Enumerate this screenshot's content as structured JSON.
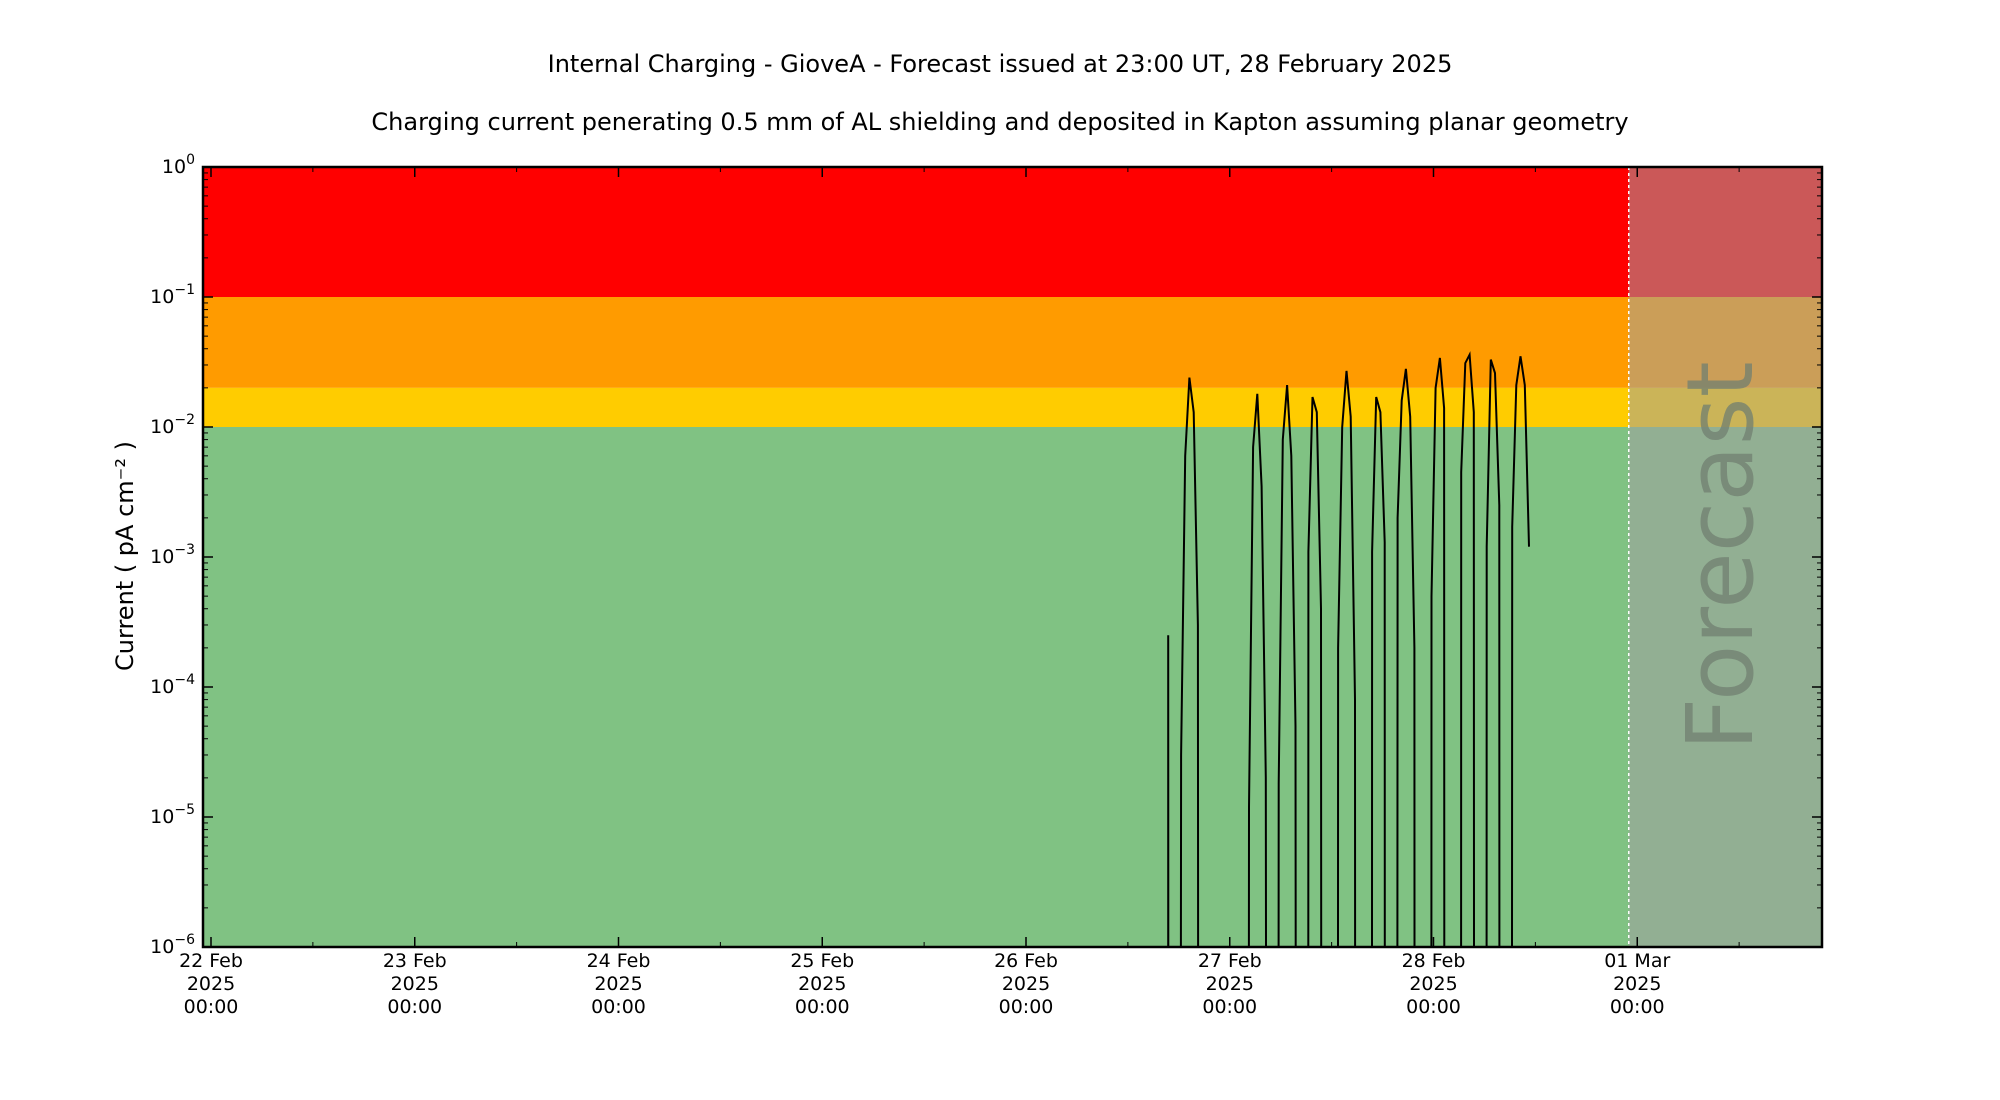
{
  "chart_data": {
    "type": "line",
    "title": "Internal Charging - GioveA - Forecast issued at 23:00 UT, 28 February 2025",
    "subtitle": "Charging current penerating 0.5 mm of AL shielding and deposited in Kapton assuming planar geometry",
    "ylabel": "Current ( pA cm⁻² )",
    "yscale": "log",
    "ylim": [
      1e-06,
      1
    ],
    "xlim": [
      "2025-02-22 00:00",
      "2025-03-01 23:00"
    ],
    "ytick_labels": [
      {
        "base": "10",
        "exp": "−6",
        "value": 1e-06
      },
      {
        "base": "10",
        "exp": "−5",
        "value": 1e-05
      },
      {
        "base": "10",
        "exp": "−4",
        "value": 0.0001
      },
      {
        "base": "10",
        "exp": "−3",
        "value": 0.001
      },
      {
        "base": "10",
        "exp": "−2",
        "value": 0.01
      },
      {
        "base": "10",
        "exp": "−1",
        "value": 0.1
      },
      {
        "base": "10",
        "exp": "0",
        "value": 1
      }
    ],
    "xtick_labels": [
      {
        "date": "2025-02-22 00:00",
        "lines": [
          "22 Feb",
          "2025",
          "00:00"
        ]
      },
      {
        "date": "2025-02-23 00:00",
        "lines": [
          "23 Feb",
          "2025",
          "00:00"
        ]
      },
      {
        "date": "2025-02-24 00:00",
        "lines": [
          "24 Feb",
          "2025",
          "00:00"
        ]
      },
      {
        "date": "2025-02-25 00:00",
        "lines": [
          "25 Feb",
          "2025",
          "00:00"
        ]
      },
      {
        "date": "2025-02-26 00:00",
        "lines": [
          "26 Feb",
          "2025",
          "00:00"
        ]
      },
      {
        "date": "2025-02-27 00:00",
        "lines": [
          "27 Feb",
          "2025",
          "00:00"
        ]
      },
      {
        "date": "2025-02-28 00:00",
        "lines": [
          "28 Feb",
          "2025",
          "00:00"
        ]
      },
      {
        "date": "2025-03-01 00:00",
        "lines": [
          "01 Mar",
          "2025",
          "00:00"
        ]
      }
    ],
    "threshold_bands": [
      {
        "name": "red",
        "from": 0.1,
        "to": 1,
        "color": "#ff0000"
      },
      {
        "name": "amber",
        "from": 0.02,
        "to": 0.1,
        "color": "#ff9b00"
      },
      {
        "name": "yellow",
        "from": 0.01,
        "to": 0.02,
        "color": "#ffcc00"
      },
      {
        "name": "green",
        "from": 1e-06,
        "to": 0.01,
        "color": "#80c283"
      }
    ],
    "forecast_start": "2025-02-28 23:00",
    "forecast_label": "Forecast",
    "forecast_shade_color": "#a0a0a0",
    "line_color": "#000000",
    "series": [
      {
        "points": [
          [
            "2025-02-26 16:45",
            1e-06
          ],
          [
            "2025-02-26 16:45",
            0.00025
          ],
          [
            "2025-02-26 16:46",
            1e-06
          ],
          [
            "2025-02-26 18:15",
            1e-06
          ],
          [
            "2025-02-26 18:16",
            3e-05
          ],
          [
            "2025-02-26 18:45",
            0.006
          ],
          [
            "2025-02-26 19:15",
            0.024
          ],
          [
            "2025-02-26 19:45",
            0.013
          ],
          [
            "2025-02-26 20:15",
            0.0003
          ],
          [
            "2025-02-26 20:16",
            1e-06
          ],
          [
            "2025-02-27 02:15",
            1e-06
          ],
          [
            "2025-02-27 02:16",
            1.2e-05
          ],
          [
            "2025-02-27 02:45",
            0.007
          ],
          [
            "2025-02-27 03:15",
            0.018
          ],
          [
            "2025-02-27 03:45",
            0.0035
          ],
          [
            "2025-02-27 04:15",
            2e-05
          ],
          [
            "2025-02-27 04:16",
            1e-06
          ],
          [
            "2025-02-27 05:45",
            1e-06
          ],
          [
            "2025-02-27 05:46",
            1.8e-05
          ],
          [
            "2025-02-27 06:15",
            0.008
          ],
          [
            "2025-02-27 06:45",
            0.021
          ],
          [
            "2025-02-27 07:15",
            0.006
          ],
          [
            "2025-02-27 07:45",
            5e-05
          ],
          [
            "2025-02-27 07:46",
            1e-06
          ],
          [
            "2025-02-27 09:15",
            1e-06
          ],
          [
            "2025-02-27 09:16",
            0.0011
          ],
          [
            "2025-02-27 09:45",
            0.017
          ],
          [
            "2025-02-27 10:15",
            0.013
          ],
          [
            "2025-02-27 10:45",
            0.0004
          ],
          [
            "2025-02-27 10:46",
            1e-06
          ],
          [
            "2025-02-27 12:45",
            1e-06
          ],
          [
            "2025-02-27 12:46",
            0.0002
          ],
          [
            "2025-02-27 13:15",
            0.01
          ],
          [
            "2025-02-27 13:45",
            0.027
          ],
          [
            "2025-02-27 14:15",
            0.012
          ],
          [
            "2025-02-27 14:45",
            8e-05
          ],
          [
            "2025-02-27 14:46",
            1e-06
          ],
          [
            "2025-02-27 16:45",
            1e-06
          ],
          [
            "2025-02-27 16:46",
            0.0011
          ],
          [
            "2025-02-27 17:15",
            0.017
          ],
          [
            "2025-02-27 17:45",
            0.013
          ],
          [
            "2025-02-27 18:15",
            0.0013
          ],
          [
            "2025-02-27 18:16",
            1e-06
          ],
          [
            "2025-02-27 19:45",
            1e-06
          ],
          [
            "2025-02-27 19:46",
            0.002
          ],
          [
            "2025-02-27 20:15",
            0.016
          ],
          [
            "2025-02-27 20:45",
            0.028
          ],
          [
            "2025-02-27 21:15",
            0.012
          ],
          [
            "2025-02-27 21:45",
            0.0002
          ],
          [
            "2025-02-27 21:46",
            1e-06
          ],
          [
            "2025-02-27 23:45",
            1e-06
          ],
          [
            "2025-02-27 23:46",
            0.0005
          ],
          [
            "2025-02-28 00:15",
            0.02
          ],
          [
            "2025-02-28 00:45",
            0.034
          ],
          [
            "2025-02-28 01:15",
            0.014
          ],
          [
            "2025-02-28 01:16",
            1e-06
          ],
          [
            "2025-02-28 03:15",
            1e-06
          ],
          [
            "2025-02-28 03:16",
            0.0045
          ],
          [
            "2025-02-28 03:45",
            0.031
          ],
          [
            "2025-02-28 04:15",
            0.036
          ],
          [
            "2025-02-28 04:45",
            0.013
          ],
          [
            "2025-02-28 04:46",
            1e-06
          ],
          [
            "2025-02-28 06:15",
            1e-06
          ],
          [
            "2025-02-28 06:16",
            0.0012
          ],
          [
            "2025-02-28 06:45",
            0.033
          ],
          [
            "2025-02-28 07:15",
            0.026
          ],
          [
            "2025-02-28 07:45",
            0.0025
          ],
          [
            "2025-02-28 07:46",
            1e-06
          ],
          [
            "2025-02-28 09:15",
            1e-06
          ],
          [
            "2025-02-28 09:16",
            0.0017
          ],
          [
            "2025-02-28 09:45",
            0.021
          ],
          [
            "2025-02-28 10:15",
            0.035
          ],
          [
            "2025-02-28 10:45",
            0.021
          ],
          [
            "2025-02-28 11:15",
            0.0012
          ]
        ]
      }
    ]
  }
}
